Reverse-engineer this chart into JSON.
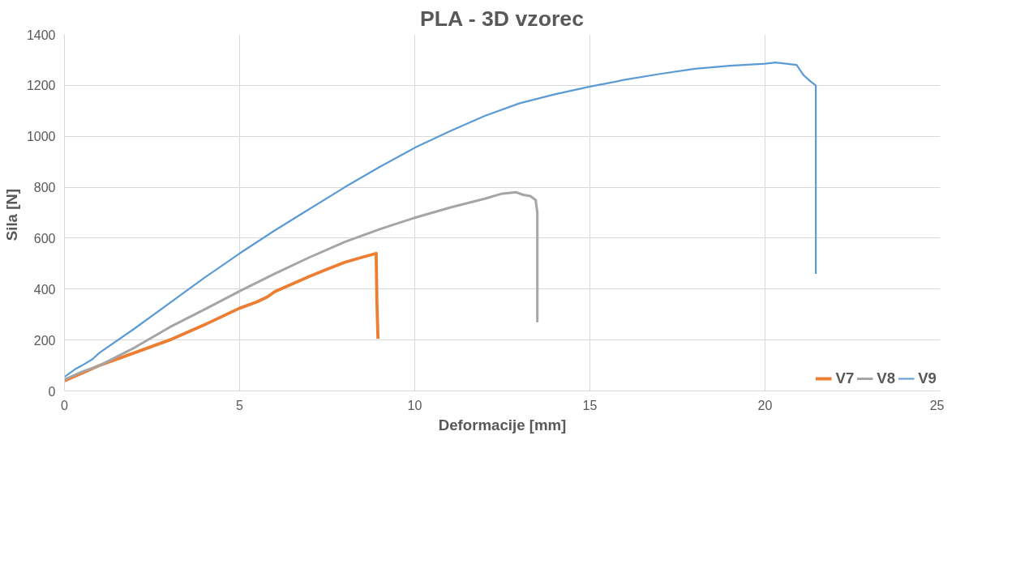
{
  "chart_data": {
    "type": "line",
    "title": "PLA - 3D vzorec",
    "xlabel": "Deformacije [mm]",
    "ylabel": "Sila  [N]",
    "xlim": [
      0,
      25
    ],
    "xticks": [
      0,
      5,
      10,
      15,
      20,
      25
    ],
    "ylim": [
      0,
      1400
    ],
    "yticks": [
      0,
      200,
      400,
      600,
      800,
      1000,
      1200,
      1400
    ],
    "grid": true,
    "legend": "bottom right",
    "marker": "none",
    "line_style": "solid",
    "series": [
      {
        "name": "V7",
        "color": "#ed7d31",
        "x": [
          0,
          0.5,
          1,
          2,
          3,
          4,
          5,
          5.5,
          5.8,
          6,
          6.5,
          7,
          7.5,
          8,
          8.5,
          8.9,
          8.9,
          8.92,
          8.95
        ],
        "values": [
          40,
          70,
          100,
          150,
          200,
          260,
          325,
          350,
          370,
          390,
          420,
          450,
          478,
          505,
          525,
          540,
          520,
          350,
          205
        ]
      },
      {
        "name": "V8",
        "color": "#a5a5a5",
        "x": [
          0,
          0.5,
          1,
          2,
          3,
          4,
          5,
          6,
          7,
          8,
          9,
          10,
          11,
          12,
          12.5,
          12.9,
          13.1,
          13.3,
          13.45,
          13.5,
          13.5
        ],
        "values": [
          45,
          75,
          100,
          170,
          250,
          320,
          392,
          460,
          525,
          585,
          635,
          680,
          720,
          755,
          775,
          780,
          770,
          765,
          750,
          700,
          270
        ]
      },
      {
        "name": "V9",
        "color": "#5b9bd5",
        "x": [
          0,
          0.3,
          0.5,
          0.8,
          1,
          2,
          3,
          4,
          5,
          6,
          7,
          8,
          9,
          10,
          11,
          12,
          13,
          14,
          15,
          16,
          17,
          18,
          19,
          20,
          20.3,
          20.9,
          21.1,
          21.3,
          21.45,
          21.45
        ],
        "values": [
          55,
          85,
          100,
          125,
          150,
          245,
          345,
          445,
          540,
          630,
          715,
          800,
          880,
          955,
          1020,
          1080,
          1130,
          1165,
          1195,
          1222,
          1245,
          1265,
          1277,
          1285,
          1290,
          1280,
          1240,
          1215,
          1200,
          460
        ]
      }
    ]
  }
}
